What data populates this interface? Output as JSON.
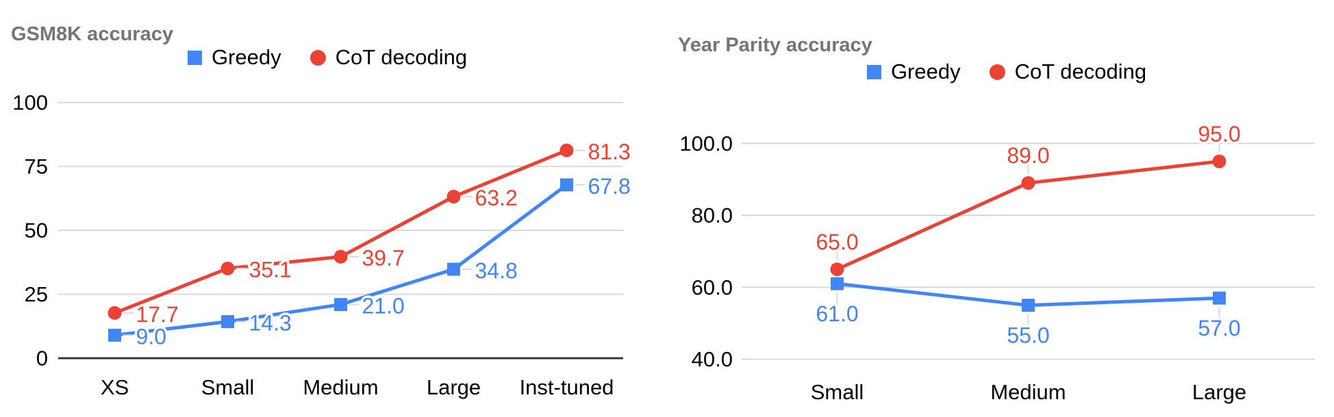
{
  "page": {
    "background": "#ffffff"
  },
  "style": {
    "title_color": "#757575",
    "text_color": "#000000",
    "grid_color": "#d9d9d9",
    "leader_color": "#d9d9d9",
    "dark_axis_color": "#383838",
    "blue": "#4285f4",
    "red": "#ea4335"
  },
  "chart_data": [
    {
      "type": "line",
      "title": "GSM8K accuracy",
      "categories": [
        "XS",
        "Small",
        "Medium",
        "Large",
        "Inst-tuned"
      ],
      "series": [
        {
          "name": "Greedy",
          "marker": "square",
          "color": "#4285f4",
          "values": [
            9.0,
            14.3,
            21.0,
            34.8,
            67.8
          ],
          "point_labels": [
            "9.0",
            "14.3",
            "21.0",
            "34.8",
            "67.8"
          ]
        },
        {
          "name": "CoT decoding",
          "marker": "circle",
          "color": "#ea4335",
          "values": [
            17.7,
            35.1,
            39.7,
            63.2,
            81.3
          ],
          "point_labels": [
            "17.7",
            "35.1",
            "39.7",
            "63.2",
            "81.3"
          ]
        }
      ],
      "ylim": [
        0,
        100
      ],
      "y_ticks": {
        "values": [
          0,
          25,
          50,
          75,
          100
        ],
        "labels": [
          "0",
          "25",
          "50",
          "75",
          "100"
        ]
      },
      "grid": "horizontal, light gray; dark baseline axis at 0",
      "legend_position": "top-center",
      "data_label_position": "right of point"
    },
    {
      "type": "line",
      "title": "Year Parity accuracy",
      "categories": [
        "Small",
        "Medium",
        "Large"
      ],
      "series": [
        {
          "name": "Greedy",
          "marker": "square",
          "color": "#4285f4",
          "values": [
            61.0,
            55.0,
            57.0
          ],
          "point_labels": [
            "61.0",
            "55.0",
            "57.0"
          ]
        },
        {
          "name": "CoT decoding",
          "marker": "circle",
          "color": "#ea4335",
          "values": [
            65.0,
            89.0,
            95.0
          ],
          "point_labels": [
            "65.0",
            "89.0",
            "95.0"
          ]
        }
      ],
      "ylim": [
        40,
        100
      ],
      "y_ticks": {
        "values": [
          40,
          60,
          80,
          100
        ],
        "labels": [
          "40.0",
          "60.0",
          "80.0",
          "100.0"
        ]
      },
      "grid": "horizontal, light gray",
      "legend_position": "top-center",
      "data_label_position": "Greedy below point, CoT decoding above point"
    }
  ]
}
